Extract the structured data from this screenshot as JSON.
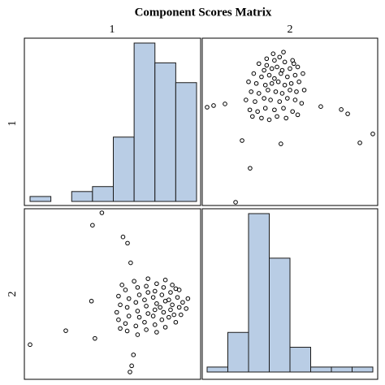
{
  "chart_data": {
    "type": "matrix",
    "title": "Component Scores Matrix",
    "variables": [
      "1",
      "2"
    ],
    "bar_color": "#b9cde5",
    "point_color": "#000000",
    "histograms": [
      {
        "bins": [
          -3.6,
          -3.0,
          -2.4,
          -1.8,
          -1.2,
          -0.6,
          0,
          0.6,
          1.2
        ],
        "counts": [
          1,
          0,
          2,
          3,
          13,
          32,
          28,
          24
        ]
      },
      {
        "bins": [
          -3.2,
          -2.4,
          -1.6,
          -0.8,
          0,
          0.8,
          1.6,
          2.4,
          3.2
        ],
        "counts": [
          1,
          8,
          32,
          23,
          5,
          1,
          1,
          1
        ]
      }
    ],
    "x": [
      -3.6,
      -2.57,
      -1.73,
      -1.83,
      -1.8,
      -1.53,
      -0.72,
      -0.67,
      -0.62,
      -0.7,
      -0.79,
      -0.92,
      0.6,
      0.75,
      0.7,
      0.8,
      0.65,
      0.7,
      0.4,
      0.45,
      0.5,
      0.4,
      0.45,
      0.5,
      0.3,
      0.2,
      0.25,
      0.15,
      0.3,
      0.2,
      0.25,
      0.3,
      0.05,
      0.0,
      -0.05,
      0.0,
      0.05,
      -0.05,
      0.0,
      0.05,
      -0.25,
      -0.3,
      -0.2,
      -0.25,
      -0.3,
      -0.2,
      -0.25,
      -0.2,
      -0.5,
      -0.55,
      -0.45,
      -0.5,
      -0.55,
      -0.45,
      -0.5,
      -0.6,
      -0.8,
      -0.85,
      -0.75,
      -0.8,
      -0.75,
      -0.85,
      -1.05,
      -1.1,
      -1.0,
      -1.05,
      -0.95,
      0.9,
      0.95,
      0.55,
      0.6,
      -1.0
    ],
    "y": [
      -2.1,
      -1.54,
      -1.85,
      -0.35,
      2.7,
      3.2,
      -3.2,
      -2.95,
      -2.51,
      1.19,
      1.98,
      2.23,
      -1.2,
      -0.9,
      -0.6,
      -0.4,
      -0.2,
      0.1,
      -1.0,
      -0.7,
      -0.5,
      -0.3,
      0.0,
      0.3,
      -1.4,
      -1.1,
      -0.8,
      -0.6,
      -0.35,
      -0.1,
      0.2,
      0.5,
      -1.6,
      -1.3,
      -0.95,
      -0.7,
      -0.45,
      -0.2,
      0.05,
      0.35,
      -1.5,
      -1.2,
      -0.85,
      -0.55,
      -0.3,
      0.0,
      0.25,
      0.55,
      -1.7,
      -1.35,
      -1.0,
      -0.75,
      -0.4,
      -0.1,
      0.2,
      0.45,
      -1.55,
      -1.25,
      -0.95,
      -0.6,
      -0.25,
      0.1,
      -1.1,
      -0.8,
      -0.5,
      -0.15,
      0.3,
      -0.65,
      -0.25,
      -0.9,
      0.15,
      -1.45
    ]
  }
}
